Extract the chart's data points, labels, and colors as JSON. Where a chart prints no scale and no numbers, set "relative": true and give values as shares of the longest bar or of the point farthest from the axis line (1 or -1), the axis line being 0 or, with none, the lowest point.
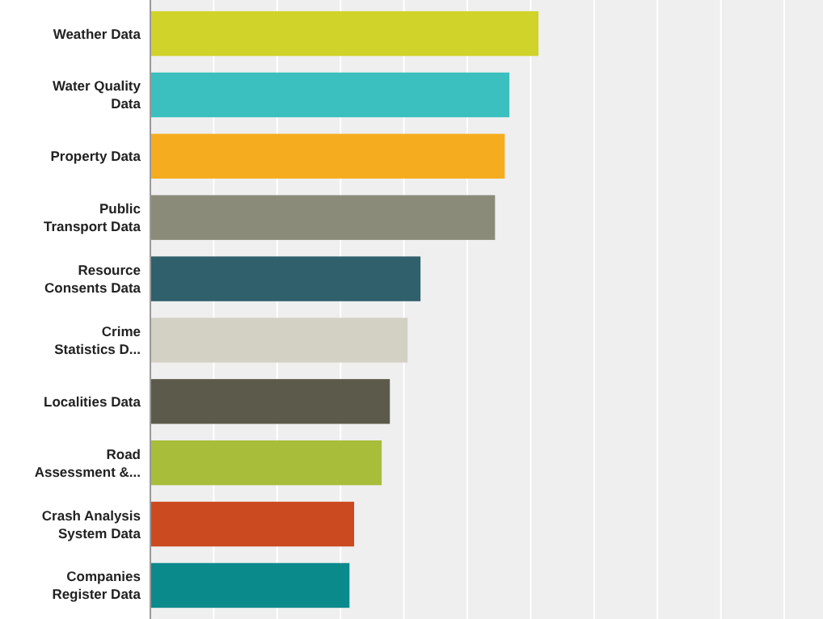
{
  "chart_data": {
    "type": "bar",
    "orientation": "horizontal",
    "relative": true,
    "grid": true,
    "categories": [
      "Weather Data",
      "Water Quality\nData",
      "Property Data",
      "Public\nTransport Data",
      "Resource\nConsents Data",
      "Crime\nStatistics D...",
      "Localities Data",
      "Road\nAssessment &...",
      "Crash Analysis\nSystem Data",
      "Companies\nRegister Data"
    ],
    "values": [
      1,
      0.925,
      0.913,
      0.888,
      0.696,
      0.663,
      0.617,
      0.596,
      0.525,
      0.513
    ],
    "colors": [
      "#d0d32a",
      "#3bbfbf",
      "#f5ad1f",
      "#8b8b7a",
      "#2f606c",
      "#d3d1c3",
      "#5c5a4a",
      "#a8bd3a",
      "#cc4a1f",
      "#0b8a8c"
    ]
  }
}
